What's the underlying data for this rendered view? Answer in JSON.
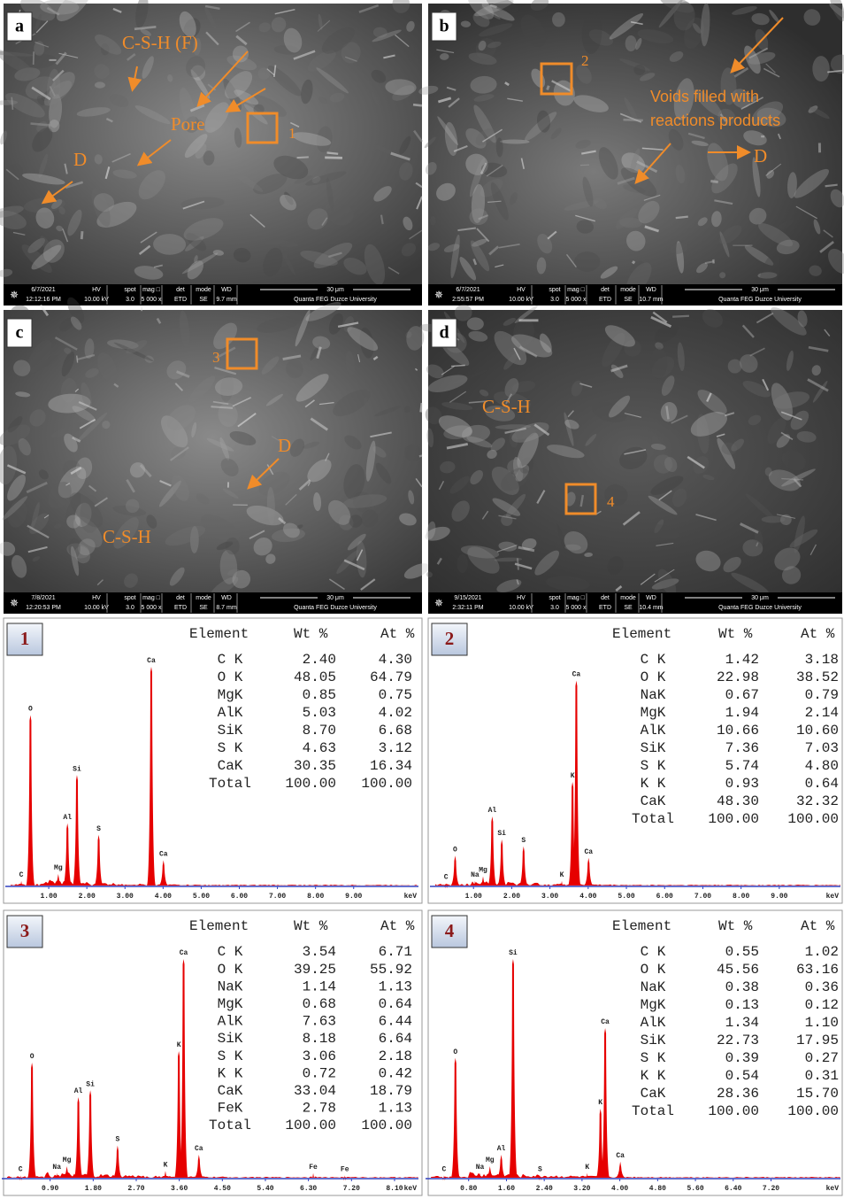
{
  "info_headers": {
    "hv": "HV",
    "spot": "spot",
    "mag": "mag □",
    "det": "det",
    "mode": "mode",
    "wd": "WD"
  },
  "sem_panels": [
    {
      "label": "a",
      "annotations": [
        "C-S-H (F)",
        "Pore",
        "D"
      ],
      "box": "1",
      "info": {
        "date": "6/7/2021",
        "time": "12:12:16 PM",
        "hv": "10.00 kV",
        "spot": "3.0",
        "mag": "5 000 x",
        "det": "ETD",
        "mode": "SE",
        "wd": "9.7 mm",
        "scale": "30 μm",
        "site": "Quanta FEG Duzce University"
      }
    },
    {
      "label": "b",
      "annotations": [
        "Voids filled with",
        "reactions products",
        "D"
      ],
      "box": "2",
      "info": {
        "date": "6/7/2021",
        "time": "2:55:57 PM",
        "hv": "10.00 kV",
        "spot": "3.0",
        "mag": "5 000 x",
        "det": "ETD",
        "mode": "SE",
        "wd": "10.7 mm",
        "scale": "30 μm",
        "site": "Quanta FEG Duzce University"
      }
    },
    {
      "label": "c",
      "annotations": [
        "D",
        "C-S-H"
      ],
      "box": "3",
      "info": {
        "date": "7/8/2021",
        "time": "12:20:53 PM",
        "hv": "10.00 kV",
        "spot": "3.0",
        "mag": "5 000 x",
        "det": "ETD",
        "mode": "SE",
        "wd": "8.7 mm",
        "scale": "30 μm",
        "site": "Quanta FEG Duzce University"
      }
    },
    {
      "label": "d",
      "annotations": [
        "C-S-H"
      ],
      "box": "4",
      "info": {
        "date": "9/15/2021",
        "time": "2:32:11 PM",
        "hv": "10.00 kV",
        "spot": "3.0",
        "mag": "5 000 x",
        "det": "ETD",
        "mode": "SE",
        "wd": "10.4 mm",
        "scale": "30 μm",
        "site": "Quanta FEG Duzce University"
      }
    }
  ],
  "eds_tables": [
    {
      "label": "1",
      "header": [
        "Element",
        "Wt %",
        "At %"
      ],
      "rows": [
        [
          "C K",
          "2.40",
          "4.30"
        ],
        [
          "O K",
          "48.05",
          "64.79"
        ],
        [
          "MgK",
          "0.85",
          "0.75"
        ],
        [
          "AlK",
          "5.03",
          "4.02"
        ],
        [
          "SiK",
          "8.70",
          "6.68"
        ],
        [
          "S K",
          "4.63",
          "3.12"
        ],
        [
          "CaK",
          "30.35",
          "16.34"
        ],
        [
          "Total",
          "100.00",
          "100.00"
        ]
      ]
    },
    {
      "label": "2",
      "header": [
        "Element",
        "Wt %",
        "At %"
      ],
      "rows": [
        [
          "C K",
          "1.42",
          "3.18"
        ],
        [
          "O K",
          "22.98",
          "38.52"
        ],
        [
          "NaK",
          "0.67",
          "0.79"
        ],
        [
          "MgK",
          "1.94",
          "2.14"
        ],
        [
          "AlK",
          "10.66",
          "10.60"
        ],
        [
          "SiK",
          "7.36",
          "7.03"
        ],
        [
          "S K",
          "5.74",
          "4.80"
        ],
        [
          "K K",
          "0.93",
          "0.64"
        ],
        [
          "CaK",
          "48.30",
          "32.32"
        ],
        [
          "Total",
          "100.00",
          "100.00"
        ]
      ]
    },
    {
      "label": "3",
      "header": [
        "Element",
        "Wt %",
        "At %"
      ],
      "rows": [
        [
          "C K",
          "3.54",
          "6.71"
        ],
        [
          "O K",
          "39.25",
          "55.92"
        ],
        [
          "NaK",
          "1.14",
          "1.13"
        ],
        [
          "MgK",
          "0.68",
          "0.64"
        ],
        [
          "AlK",
          "7.63",
          "6.44"
        ],
        [
          "SiK",
          "8.18",
          "6.64"
        ],
        [
          "S K",
          "3.06",
          "2.18"
        ],
        [
          "K K",
          "0.72",
          "0.42"
        ],
        [
          "CaK",
          "33.04",
          "18.79"
        ],
        [
          "FeK",
          "2.78",
          "1.13"
        ],
        [
          "Total",
          "100.00",
          "100.00"
        ]
      ]
    },
    {
      "label": "4",
      "header": [
        "Element",
        "Wt %",
        "At %"
      ],
      "rows": [
        [
          "C K",
          "0.55",
          "1.02"
        ],
        [
          "O K",
          "45.56",
          "63.16"
        ],
        [
          "NaK",
          "0.38",
          "0.36"
        ],
        [
          "MgK",
          "0.13",
          "0.12"
        ],
        [
          "AlK",
          "1.34",
          "1.10"
        ],
        [
          "SiK",
          "22.73",
          "17.95"
        ],
        [
          "S K",
          "0.39",
          "0.27"
        ],
        [
          "K K",
          "0.54",
          "0.31"
        ],
        [
          "CaK",
          "28.36",
          "15.70"
        ],
        [
          "Total",
          "100.00",
          "100.00"
        ]
      ]
    }
  ],
  "chart_data": [
    {
      "type": "spectrum",
      "xlabel": "keV",
      "color": "#e60000",
      "xlim": [
        0,
        10.7
      ],
      "ylim": [
        0,
        100
      ],
      "xticks": [
        {
          "value": 1,
          "label": "1.00"
        },
        {
          "value": 2,
          "label": "2.00"
        },
        {
          "value": 3,
          "label": "3.00"
        },
        {
          "value": 4,
          "label": "4.00"
        },
        {
          "value": 5,
          "label": "5.00"
        },
        {
          "value": 6,
          "label": "6.00"
        },
        {
          "value": 7,
          "label": "7.00"
        },
        {
          "value": 8,
          "label": "8.00"
        },
        {
          "value": 9,
          "label": "9.00"
        }
      ],
      "peaks": [
        {
          "label": "C",
          "x": 0.28,
          "height": 2
        },
        {
          "label": "O",
          "x": 0.52,
          "height": 74
        },
        {
          "label": "Mg",
          "x": 1.25,
          "height": 5
        },
        {
          "label": "Al",
          "x": 1.49,
          "height": 27
        },
        {
          "label": "Si",
          "x": 1.74,
          "height": 48
        },
        {
          "label": "S",
          "x": 2.31,
          "height": 22
        },
        {
          "label": "Ca",
          "x": 3.69,
          "height": 95
        },
        {
          "label": "Ca",
          "x": 4.01,
          "height": 11
        }
      ]
    },
    {
      "type": "spectrum",
      "xlabel": "keV",
      "color": "#e60000",
      "xlim": [
        0,
        10.6
      ],
      "ylim": [
        0,
        100
      ],
      "xticks": [
        {
          "value": 1,
          "label": "1.00"
        },
        {
          "value": 2,
          "label": "2.00"
        },
        {
          "value": 3,
          "label": "3.00"
        },
        {
          "value": 4,
          "label": "4.00"
        },
        {
          "value": 5,
          "label": "5.00"
        },
        {
          "value": 6,
          "label": "6.00"
        },
        {
          "value": 7,
          "label": "7.00"
        },
        {
          "value": 8,
          "label": "8.00"
        },
        {
          "value": 9,
          "label": "9.00"
        }
      ],
      "peaks": [
        {
          "label": "C",
          "x": 0.28,
          "height": 1
        },
        {
          "label": "O",
          "x": 0.52,
          "height": 13
        },
        {
          "label": "Na",
          "x": 1.04,
          "height": 2
        },
        {
          "label": "Mg",
          "x": 1.25,
          "height": 4
        },
        {
          "label": "Al",
          "x": 1.49,
          "height": 30
        },
        {
          "label": "Si",
          "x": 1.74,
          "height": 20
        },
        {
          "label": "S",
          "x": 2.31,
          "height": 17
        },
        {
          "label": "K",
          "x": 3.31,
          "height": 2
        },
        {
          "label": "K",
          "x": 3.59,
          "height": 45
        },
        {
          "label": "Ca",
          "x": 3.69,
          "height": 89
        },
        {
          "label": "Ca",
          "x": 4.01,
          "height": 12
        }
      ]
    },
    {
      "type": "spectrum",
      "xlabel": "keV",
      "color": "#e60000",
      "xlim": [
        0,
        8.6
      ],
      "ylim": [
        0,
        100
      ],
      "xticks": [
        {
          "value": 0.9,
          "label": "0.90"
        },
        {
          "value": 1.8,
          "label": "1.80"
        },
        {
          "value": 2.7,
          "label": "2.70"
        },
        {
          "value": 3.6,
          "label": "3.60"
        },
        {
          "value": 4.5,
          "label": "4.50"
        },
        {
          "value": 5.4,
          "label": "5.40"
        },
        {
          "value": 6.3,
          "label": "6.30"
        },
        {
          "value": 7.2,
          "label": "7.20"
        },
        {
          "value": 8.1,
          "label": "8.10"
        }
      ],
      "peaks": [
        {
          "label": "C",
          "x": 0.28,
          "height": 1
        },
        {
          "label": "O",
          "x": 0.52,
          "height": 50
        },
        {
          "label": "Na",
          "x": 1.04,
          "height": 2
        },
        {
          "label": "Mg",
          "x": 1.25,
          "height": 5
        },
        {
          "label": "Al",
          "x": 1.49,
          "height": 35
        },
        {
          "label": "Si",
          "x": 1.74,
          "height": 38
        },
        {
          "label": "S",
          "x": 2.31,
          "height": 14
        },
        {
          "label": "K",
          "x": 3.31,
          "height": 3
        },
        {
          "label": "K",
          "x": 3.59,
          "height": 55
        },
        {
          "label": "Ca",
          "x": 3.69,
          "height": 95
        },
        {
          "label": "Ca",
          "x": 4.01,
          "height": 10
        },
        {
          "label": "Fe",
          "x": 6.4,
          "height": 2
        },
        {
          "label": "Fe",
          "x": 7.06,
          "height": 1
        }
      ]
    },
    {
      "type": "spectrum",
      "xlabel": "keV",
      "color": "#e60000",
      "xlim": [
        0,
        8.67
      ],
      "ylim": [
        0,
        100
      ],
      "xticks": [
        {
          "value": 0.8,
          "label": "0.80"
        },
        {
          "value": 1.6,
          "label": "1.60"
        },
        {
          "value": 2.4,
          "label": "2.40"
        },
        {
          "value": 3.2,
          "label": "3.20"
        },
        {
          "value": 4,
          "label": "4.00"
        },
        {
          "value": 4.8,
          "label": "4.80"
        },
        {
          "value": 5.6,
          "label": "5.60"
        },
        {
          "value": 6.4,
          "label": "6.40"
        },
        {
          "value": 7.2,
          "label": "7.20"
        }
      ],
      "peaks": [
        {
          "label": "C",
          "x": 0.28,
          "height": 1
        },
        {
          "label": "O",
          "x": 0.52,
          "height": 52
        },
        {
          "label": "Na",
          "x": 1.04,
          "height": 2
        },
        {
          "label": "Mg",
          "x": 1.25,
          "height": 5
        },
        {
          "label": "Al",
          "x": 1.49,
          "height": 10
        },
        {
          "label": "Si",
          "x": 1.74,
          "height": 95
        },
        {
          "label": "S",
          "x": 2.31,
          "height": 1
        },
        {
          "label": "K",
          "x": 3.31,
          "height": 2
        },
        {
          "label": "K",
          "x": 3.59,
          "height": 30
        },
        {
          "label": "Ca",
          "x": 3.69,
          "height": 65
        },
        {
          "label": "Ca",
          "x": 4.01,
          "height": 7
        }
      ]
    }
  ]
}
